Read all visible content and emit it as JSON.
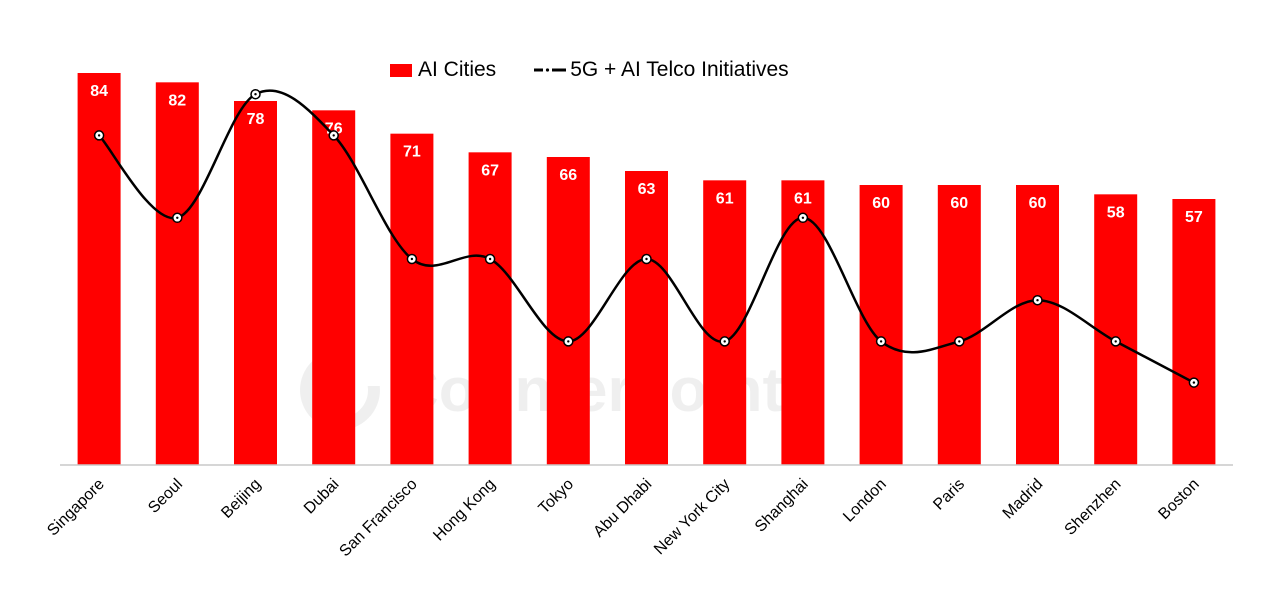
{
  "colors": {
    "bar": "#ff0000",
    "line": "#000000",
    "axis": "#c8c8c8",
    "bar_label": "#ffffff"
  },
  "legend": {
    "bar_label": "AI Cities",
    "line_label": "5G + AI Telco Initiatives"
  },
  "watermark": {
    "text": "Counterpoint"
  },
  "chart_data": {
    "type": "bar",
    "categories": [
      "Singapore",
      "Seoul",
      "Beijing",
      "Dubai",
      "San Francisco",
      "Hong Kong",
      "Tokyo",
      "Abu Dhabi",
      "New York City",
      "Shanghai",
      "London",
      "Paris",
      "Madrid",
      "Shenzhen",
      "Boston"
    ],
    "series": [
      {
        "name": "AI Cities",
        "type": "bar",
        "values": [
          84,
          82,
          78,
          76,
          71,
          67,
          66,
          63,
          61,
          61,
          60,
          60,
          60,
          58,
          57
        ]
      },
      {
        "name": "5G + AI Telco Initiatives",
        "type": "line",
        "smooth": true,
        "values": [
          8,
          6,
          9,
          8,
          5,
          5,
          3,
          5,
          3,
          6,
          3,
          3,
          4,
          3,
          2
        ]
      }
    ],
    "title": "",
    "xlabel": "",
    "ylabel": "",
    "ylim": [
      0,
      90
    ],
    "y2lim": [
      0,
      11
    ],
    "grid": false,
    "legend_position": "top-center",
    "data_labels": true
  }
}
